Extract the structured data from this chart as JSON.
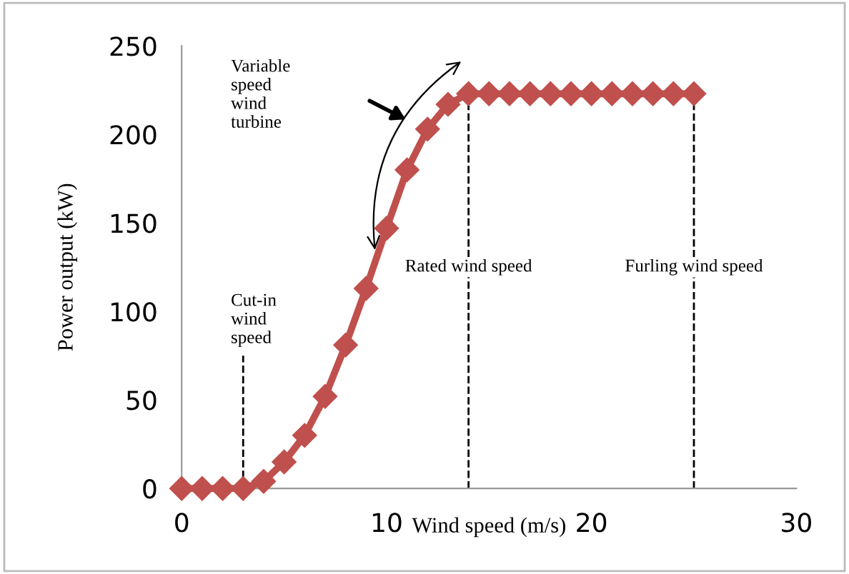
{
  "chart_data": {
    "type": "line",
    "xlabel": "Wind speed (m/s)",
    "ylabel": "Power output (kW)",
    "x": [
      0,
      1,
      2,
      3,
      4,
      5,
      6,
      7,
      8,
      9,
      10,
      11,
      12,
      13,
      14,
      15,
      16,
      17,
      18,
      19,
      20,
      21,
      22,
      23,
      24,
      25
    ],
    "series": [
      {
        "color": "#c0504d",
        "values": [
          0,
          0,
          0,
          0,
          4,
          15,
          30,
          52,
          81,
          113,
          147,
          180,
          203,
          217,
          223,
          223,
          223,
          223,
          223,
          223,
          223,
          223,
          223,
          223,
          223,
          223
        ]
      }
    ],
    "xlim": [
      0,
      30
    ],
    "xticks": [
      0,
      10,
      20,
      30
    ],
    "ylim": [
      0,
      250
    ],
    "yticks": [
      0,
      50,
      100,
      150,
      200,
      250
    ],
    "marker": "diamond",
    "line_style": "solid",
    "grid": false,
    "legend": false,
    "ref_lines": [
      {
        "axis": "x",
        "value": 3,
        "label": "Cut-in\nwind\nspeed",
        "line_style": "dashed",
        "color": "#000000"
      },
      {
        "axis": "x",
        "value": 14,
        "label": "Rated wind speed",
        "line_style": "dashed",
        "color": "#000000"
      },
      {
        "axis": "x",
        "value": 25,
        "label": "Furling wind speed",
        "line_style": "dashed",
        "color": "#000000"
      }
    ],
    "annotations": [
      "Variable\nspeed\nwind\nturbine"
    ]
  }
}
